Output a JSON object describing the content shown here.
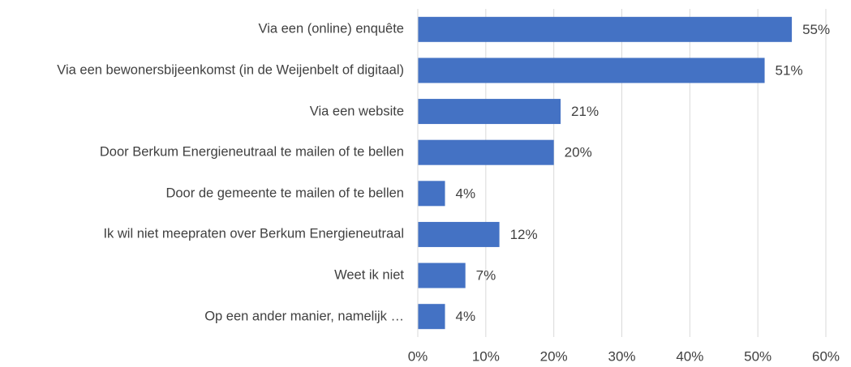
{
  "chart_data": {
    "type": "bar",
    "orientation": "horizontal",
    "categories": [
      "Via een (online) enquête",
      "Via een bewonersbijeenkomst (in de Weijenbelt of digitaal)",
      "Via een website",
      "Door Berkum Energieneutraal te mailen of te bellen",
      "Door de gemeente te mailen of te bellen",
      "Ik wil niet meepraten over Berkum Energieneutraal",
      "Weet ik niet",
      "Op een ander manier, namelijk …"
    ],
    "values": [
      55,
      51,
      21,
      20,
      4,
      12,
      7,
      4
    ],
    "value_labels": [
      "55%",
      "51%",
      "21%",
      "20%",
      "4%",
      "12%",
      "7%",
      "4%"
    ],
    "color": "#4472c4",
    "xlim": [
      0,
      60
    ],
    "xticks": [
      {
        "value": 0,
        "label": "0%"
      },
      {
        "value": 10,
        "label": "10%"
      },
      {
        "value": 20,
        "label": "20%"
      },
      {
        "value": 30,
        "label": "30%"
      },
      {
        "value": 40,
        "label": "40%"
      },
      {
        "value": 50,
        "label": "50%"
      },
      {
        "value": 60,
        "label": "60%"
      }
    ],
    "grid": true
  }
}
